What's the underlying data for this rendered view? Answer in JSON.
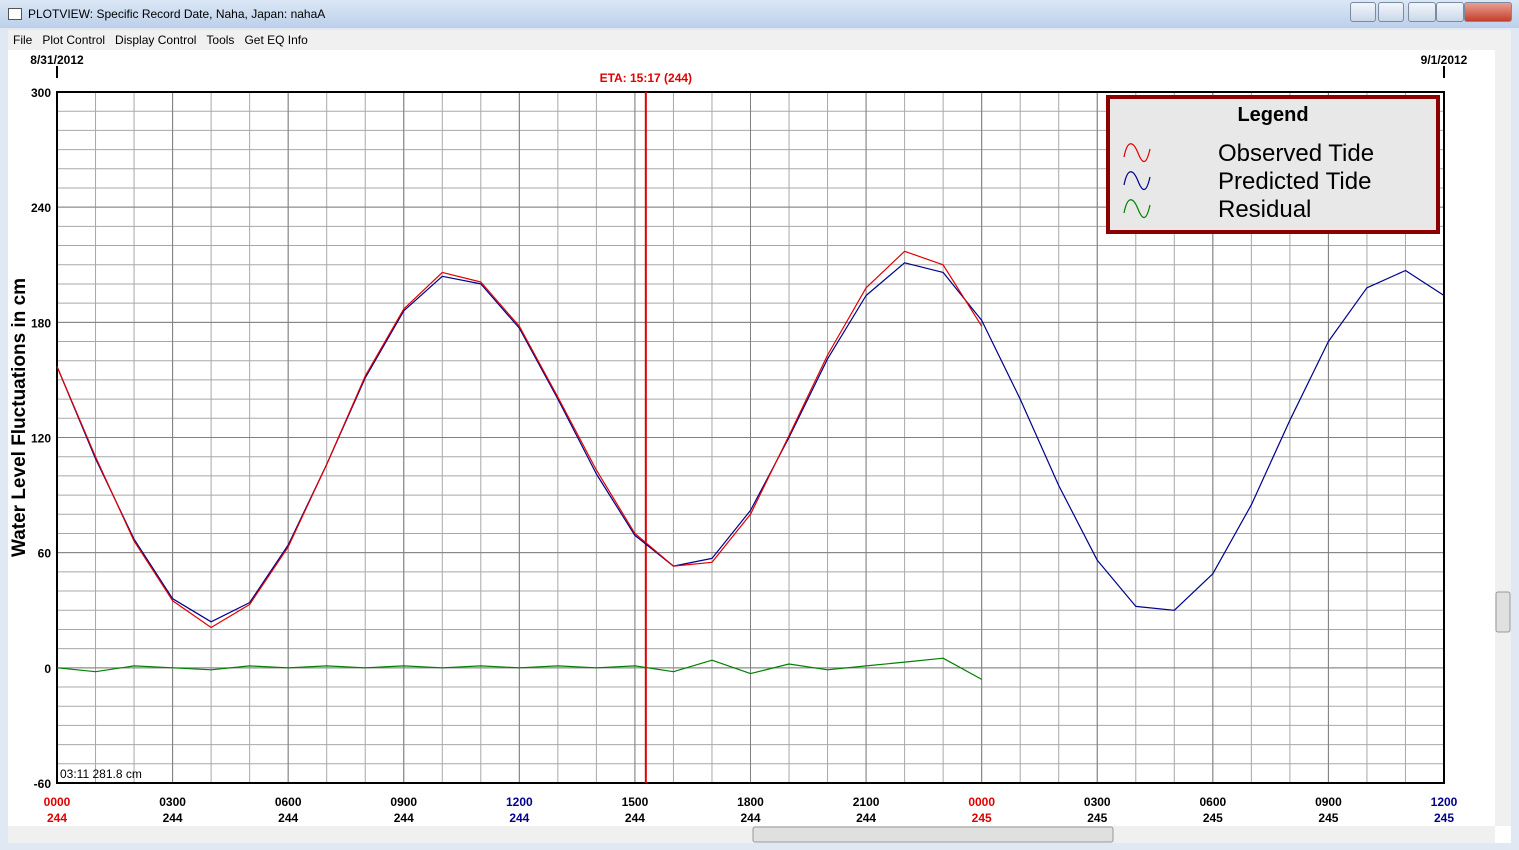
{
  "window": {
    "title": "PLOTVIEW: Specific Record Date, Naha, Japan: nahaA",
    "menu": [
      "File",
      "Plot Control",
      "Display Control",
      "Tools",
      "Get EQ Info"
    ]
  },
  "chart_data": {
    "type": "line",
    "ylabel": "Water Level Fluctuations in cm",
    "xlim": [
      0,
      36
    ],
    "ylim": [
      -60,
      300
    ],
    "yticks": [
      -60,
      0,
      60,
      120,
      180,
      240,
      300
    ],
    "xticks": [
      {
        "value": 0,
        "label": "0000",
        "day": "244",
        "color": "#e00000"
      },
      {
        "value": 3,
        "label": "0300",
        "day": "244",
        "color": "#000000"
      },
      {
        "value": 6,
        "label": "0600",
        "day": "244",
        "color": "#000000"
      },
      {
        "value": 9,
        "label": "0900",
        "day": "244",
        "color": "#000000"
      },
      {
        "value": 12,
        "label": "1200",
        "day": "244",
        "color": "#00008b"
      },
      {
        "value": 15,
        "label": "1500",
        "day": "244",
        "color": "#000000"
      },
      {
        "value": 18,
        "label": "1800",
        "day": "244",
        "color": "#000000"
      },
      {
        "value": 21,
        "label": "2100",
        "day": "244",
        "color": "#000000"
      },
      {
        "value": 24,
        "label": "0000",
        "day": "245",
        "color": "#e00000"
      },
      {
        "value": 27,
        "label": "0300",
        "day": "245",
        "color": "#000000"
      },
      {
        "value": 30,
        "label": "0600",
        "day": "245",
        "color": "#000000"
      },
      {
        "value": 33,
        "label": "0900",
        "day": "245",
        "color": "#000000"
      },
      {
        "value": 36,
        "label": "1200",
        "day": "245",
        "color": "#00008b"
      }
    ],
    "date_labels": [
      {
        "value": 0,
        "label": "8/31/2012"
      },
      {
        "value": 36,
        "label": "9/1/2012"
      }
    ],
    "eta": {
      "value": 15.283,
      "label": "ETA: 15:17 (244)",
      "color": "#e00000"
    },
    "readout": "03:11 281.8 cm",
    "grid": true,
    "legend": {
      "title": "Legend",
      "position": "upper right"
    },
    "series": [
      {
        "name": "Observed Tide",
        "color": "#e00000",
        "x": [
          0,
          1,
          2,
          3,
          4,
          5,
          6,
          7,
          8,
          9,
          10,
          11,
          12,
          13,
          14,
          15,
          16,
          17,
          18,
          19,
          20,
          21,
          22,
          23,
          24
        ],
        "values": [
          157,
          110,
          66,
          35,
          21,
          33,
          63,
          106,
          152,
          187,
          206,
          201,
          178,
          141,
          103,
          70,
          53,
          55,
          80,
          121,
          163,
          198,
          217,
          210,
          178
        ]
      },
      {
        "name": "Predicted Tide",
        "color": "#00008b",
        "x": [
          0,
          1,
          2,
          3,
          4,
          5,
          6,
          7,
          8,
          9,
          10,
          11,
          12,
          13,
          14,
          15,
          16,
          17,
          18,
          19,
          20,
          21,
          22,
          23,
          24,
          25,
          26,
          27,
          28,
          29,
          30,
          31,
          32,
          33,
          34,
          35,
          36
        ],
        "values": [
          157,
          109,
          67,
          36,
          24,
          34,
          64,
          106,
          151,
          186,
          204,
          200,
          177,
          140,
          101,
          69,
          53,
          57,
          82,
          120,
          161,
          194,
          211,
          206,
          181,
          140,
          95,
          56,
          32,
          30,
          49,
          85,
          129,
          170,
          198,
          207,
          194
        ]
      },
      {
        "name": "Residual",
        "color": "#008000",
        "x": [
          0,
          1,
          2,
          3,
          4,
          5,
          6,
          7,
          8,
          9,
          10,
          11,
          12,
          13,
          14,
          15,
          16,
          17,
          18,
          19,
          20,
          21,
          22,
          23,
          24
        ],
        "values": [
          0,
          -2,
          1,
          0,
          -1,
          1,
          0,
          1,
          0,
          1,
          0,
          1,
          0,
          1,
          0,
          1,
          -2,
          4,
          -3,
          2,
          -1,
          1,
          3,
          5,
          -6
        ]
      }
    ]
  }
}
